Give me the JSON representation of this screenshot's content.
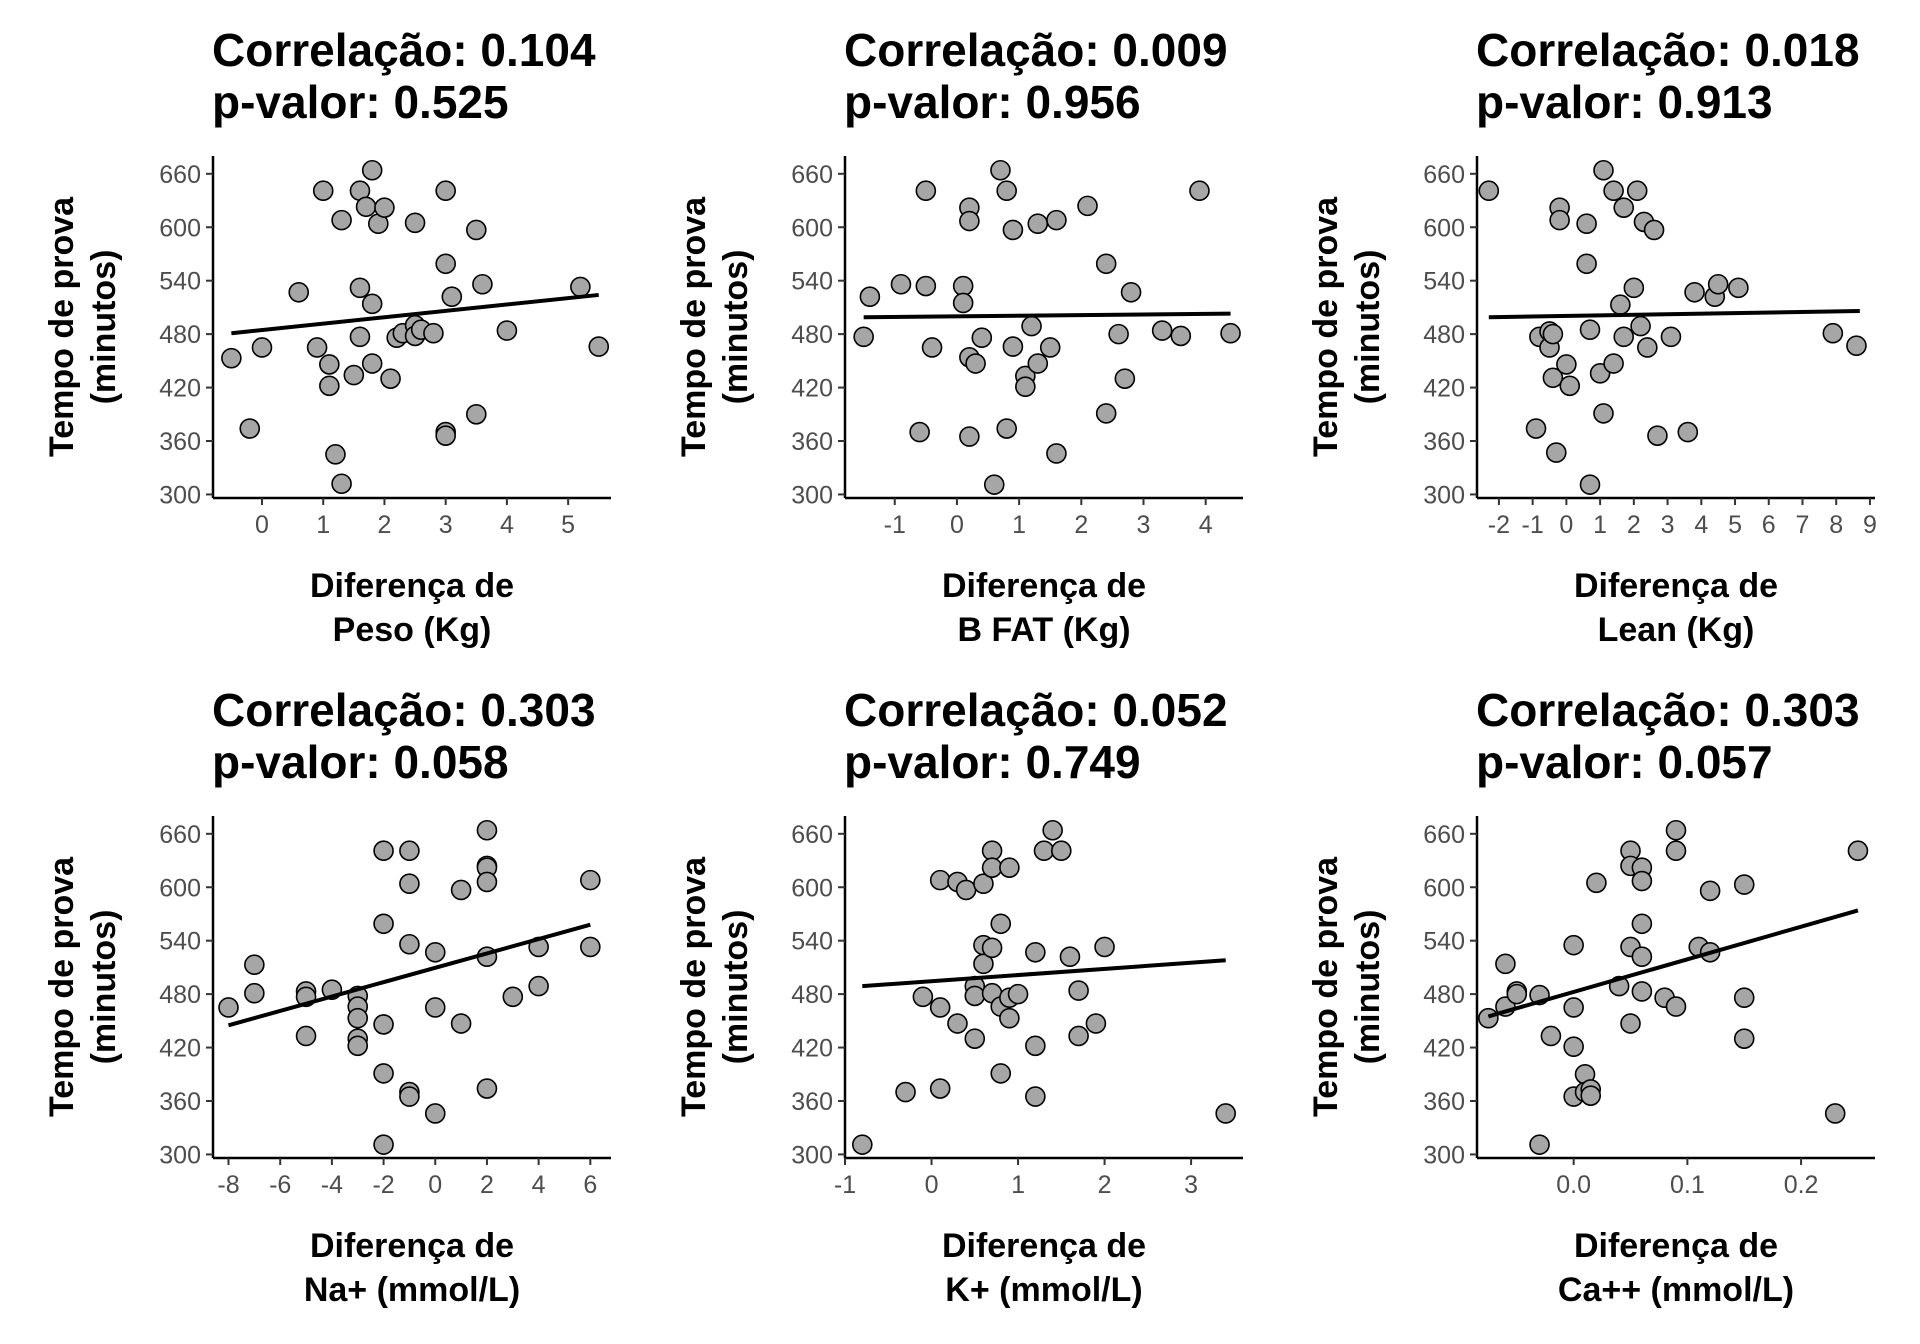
{
  "chart_data": [
    {
      "type": "scatter",
      "title": [
        "Correlação: 0.104",
        "p-valor: 0.525"
      ],
      "xlabel": [
        "Diferença de",
        "Peso (Kg)"
      ],
      "ylabel": [
        "Tempo de prova",
        "(minutos)"
      ],
      "xlim": [
        -0.8,
        5.7
      ],
      "ylim": [
        296,
        680
      ],
      "xticks": [
        0,
        1,
        2,
        3,
        4,
        5
      ],
      "xtick_labels": [
        "0",
        "1",
        "2",
        "3",
        "4",
        "5"
      ],
      "yticks": [
        300,
        360,
        420,
        480,
        540,
        600,
        660
      ],
      "ytick_labels": [
        "300",
        "360",
        "420",
        "480",
        "540",
        "600",
        "660"
      ],
      "trend": {
        "x": [
          -0.5,
          5.5
        ],
        "y": [
          481,
          524
        ]
      },
      "points": [
        [
          -0.5,
          453
        ],
        [
          -0.2,
          374
        ],
        [
          0,
          465
        ],
        [
          0.6,
          527
        ],
        [
          0.9,
          465
        ],
        [
          1,
          641
        ],
        [
          1.1,
          446
        ],
        [
          1.1,
          422
        ],
        [
          1.2,
          345
        ],
        [
          1.3,
          608
        ],
        [
          1.3,
          312
        ],
        [
          1.5,
          434
        ],
        [
          1.6,
          641
        ],
        [
          1.6,
          532
        ],
        [
          1.6,
          477
        ],
        [
          1.7,
          623
        ],
        [
          1.8,
          664
        ],
        [
          1.8,
          514
        ],
        [
          1.8,
          447
        ],
        [
          1.9,
          604
        ],
        [
          2,
          622
        ],
        [
          2.1,
          430
        ],
        [
          2.2,
          476
        ],
        [
          2.3,
          481
        ],
        [
          2.5,
          605
        ],
        [
          2.5,
          490
        ],
        [
          2.5,
          478
        ],
        [
          2.6,
          485
        ],
        [
          2.8,
          481
        ],
        [
          3,
          641
        ],
        [
          3,
          559
        ],
        [
          3,
          370
        ],
        [
          3,
          366
        ],
        [
          3.1,
          522
        ],
        [
          3.5,
          597
        ],
        [
          3.5,
          390
        ],
        [
          3.6,
          536
        ],
        [
          4,
          484
        ],
        [
          5.2,
          533
        ],
        [
          5.5,
          466
        ]
      ]
    },
    {
      "type": "scatter",
      "title": [
        "Correlação: 0.009",
        "p-valor: 0.956"
      ],
      "xlabel": [
        "Diferença de",
        "B FAT (Kg)"
      ],
      "ylabel": [
        "Tempo de prova",
        "(minutos)"
      ],
      "xlim": [
        -1.8,
        4.6
      ],
      "ylim": [
        296,
        680
      ],
      "xticks": [
        -1,
        0,
        1,
        2,
        3,
        4
      ],
      "xtick_labels": [
        "-1",
        "0",
        "1",
        "2",
        "3",
        "4"
      ],
      "yticks": [
        300,
        360,
        420,
        480,
        540,
        600,
        660
      ],
      "ytick_labels": [
        "300",
        "360",
        "420",
        "480",
        "540",
        "600",
        "660"
      ],
      "trend": {
        "x": [
          -1.5,
          4.4
        ],
        "y": [
          499,
          503
        ]
      },
      "points": [
        [
          -1.5,
          477
        ],
        [
          -1.4,
          522
        ],
        [
          -0.9,
          536
        ],
        [
          -0.6,
          370
        ],
        [
          -0.5,
          641
        ],
        [
          -0.5,
          534
        ],
        [
          -0.4,
          465
        ],
        [
          0.1,
          534
        ],
        [
          0.1,
          515
        ],
        [
          0.2,
          622
        ],
        [
          0.2,
          607
        ],
        [
          0.2,
          454
        ],
        [
          0.2,
          365
        ],
        [
          0.3,
          447
        ],
        [
          0.4,
          476
        ],
        [
          0.6,
          311
        ],
        [
          0.7,
          664
        ],
        [
          0.8,
          641
        ],
        [
          0.8,
          374
        ],
        [
          0.9,
          597
        ],
        [
          0.9,
          466
        ],
        [
          1.1,
          433
        ],
        [
          1.1,
          421
        ],
        [
          1.2,
          489
        ],
        [
          1.3,
          604
        ],
        [
          1.3,
          447
        ],
        [
          1.5,
          465
        ],
        [
          1.6,
          608
        ],
        [
          1.6,
          346
        ],
        [
          2.1,
          624
        ],
        [
          2.4,
          559
        ],
        [
          2.4,
          391
        ],
        [
          2.6,
          480
        ],
        [
          2.7,
          430
        ],
        [
          2.8,
          527
        ],
        [
          3.3,
          484
        ],
        [
          3.6,
          478
        ],
        [
          3.9,
          641
        ],
        [
          4.4,
          481
        ]
      ]
    },
    {
      "type": "scatter",
      "title": [
        "Correlação: 0.018",
        "p-valor: 0.913"
      ],
      "xlabel": [
        "Diferença de",
        "Lean (Kg)"
      ],
      "ylabel": [
        "Tempo de prova",
        "(minutos)"
      ],
      "xlim": [
        -2.65,
        9.15
      ],
      "ylim": [
        296,
        680
      ],
      "xticks": [
        -2,
        -1,
        0,
        1,
        2,
        3,
        4,
        5,
        6,
        7,
        8,
        9
      ],
      "xtick_labels": [
        "-2",
        "-1",
        "0",
        "1",
        "2",
        "3",
        "4",
        "5",
        "6",
        "7",
        "8",
        "9"
      ],
      "yticks": [
        300,
        360,
        420,
        480,
        540,
        600,
        660
      ],
      "ytick_labels": [
        "300",
        "360",
        "420",
        "480",
        "540",
        "600",
        "660"
      ],
      "trend": {
        "x": [
          -2.3,
          8.7
        ],
        "y": [
          499,
          506
        ]
      },
      "points": [
        [
          -2.3,
          641
        ],
        [
          -0.9,
          374
        ],
        [
          -0.8,
          477
        ],
        [
          -0.5,
          483
        ],
        [
          -0.5,
          465
        ],
        [
          -0.4,
          431
        ],
        [
          -0.4,
          480
        ],
        [
          -0.3,
          347
        ],
        [
          -0.2,
          622
        ],
        [
          -0.2,
          608
        ],
        [
          0,
          446
        ],
        [
          0.1,
          422
        ],
        [
          0.6,
          604
        ],
        [
          0.6,
          559
        ],
        [
          0.7,
          485
        ],
        [
          0.7,
          311
        ],
        [
          1,
          436
        ],
        [
          1.1,
          664
        ],
        [
          1.1,
          391
        ],
        [
          1.4,
          641
        ],
        [
          1.4,
          447
        ],
        [
          1.6,
          513
        ],
        [
          1.7,
          622
        ],
        [
          1.7,
          477
        ],
        [
          2,
          532
        ],
        [
          2.1,
          641
        ],
        [
          2.2,
          489
        ],
        [
          2.3,
          606
        ],
        [
          2.4,
          465
        ],
        [
          2.6,
          597
        ],
        [
          2.7,
          366
        ],
        [
          3.1,
          477
        ],
        [
          3.6,
          370
        ],
        [
          3.8,
          527
        ],
        [
          4.4,
          522
        ],
        [
          4.5,
          536
        ],
        [
          5.1,
          532
        ],
        [
          7.9,
          481
        ],
        [
          8.6,
          467
        ]
      ]
    },
    {
      "type": "scatter",
      "title": [
        "Correlação: 0.303",
        "p-valor: 0.058"
      ],
      "xlabel": [
        "Diferença de",
        "Na+ (mmol/L)"
      ],
      "ylabel": [
        "Tempo de prova",
        "(minutos)"
      ],
      "xlim": [
        -8.6,
        6.8
      ],
      "ylim": [
        296,
        680
      ],
      "xticks": [
        -8,
        -6,
        -4,
        -2,
        0,
        2,
        4,
        6
      ],
      "xtick_labels": [
        "-8",
        "-6",
        "-4",
        "-2",
        "0",
        "2",
        "4",
        "6"
      ],
      "yticks": [
        300,
        360,
        420,
        480,
        540,
        600,
        660
      ],
      "ytick_labels": [
        "300",
        "360",
        "420",
        "480",
        "540",
        "600",
        "660"
      ],
      "trend": {
        "x": [
          -8,
          6
        ],
        "y": [
          445,
          558
        ]
      },
      "points": [
        [
          -8,
          465
        ],
        [
          -7,
          513
        ],
        [
          -7,
          481
        ],
        [
          -5,
          483
        ],
        [
          -5,
          477
        ],
        [
          -5,
          433
        ],
        [
          -4,
          485
        ],
        [
          -3,
          478
        ],
        [
          -3,
          466
        ],
        [
          -3,
          453
        ],
        [
          -3,
          430
        ],
        [
          -3,
          422
        ],
        [
          -2,
          641
        ],
        [
          -2,
          559
        ],
        [
          -2,
          446
        ],
        [
          -2,
          391
        ],
        [
          -2,
          311
        ],
        [
          -1,
          641
        ],
        [
          -1,
          604
        ],
        [
          -1,
          536
        ],
        [
          -1,
          370
        ],
        [
          -1,
          365
        ],
        [
          0,
          527
        ],
        [
          0,
          465
        ],
        [
          0,
          346
        ],
        [
          1,
          597
        ],
        [
          1,
          447
        ],
        [
          2,
          664
        ],
        [
          2,
          624
        ],
        [
          2,
          622
        ],
        [
          2,
          606
        ],
        [
          2,
          522
        ],
        [
          2,
          374
        ],
        [
          3,
          477
        ],
        [
          4,
          533
        ],
        [
          4,
          489
        ],
        [
          6,
          608
        ],
        [
          6,
          533
        ]
      ]
    },
    {
      "type": "scatter",
      "title": [
        "Correlação: 0.052",
        "p-valor: 0.749"
      ],
      "xlabel": [
        "Diferença de",
        "K+ (mmol/L)"
      ],
      "ylabel": [
        "Tempo de prova",
        "(minutos)"
      ],
      "xlim": [
        -1,
        3.6
      ],
      "ylim": [
        296,
        680
      ],
      "xticks": [
        -1,
        0,
        1,
        2,
        3
      ],
      "xtick_labels": [
        "-1",
        "0",
        "1",
        "2",
        "3"
      ],
      "yticks": [
        300,
        360,
        420,
        480,
        540,
        600,
        660
      ],
      "ytick_labels": [
        "300",
        "360",
        "420",
        "480",
        "540",
        "600",
        "660"
      ],
      "trend": {
        "x": [
          -0.8,
          3.4
        ],
        "y": [
          489,
          518
        ]
      },
      "points": [
        [
          -0.8,
          311
        ],
        [
          -0.3,
          370
        ],
        [
          -0.1,
          477
        ],
        [
          0.1,
          608
        ],
        [
          0.1,
          465
        ],
        [
          0.1,
          374
        ],
        [
          0.3,
          606
        ],
        [
          0.3,
          447
        ],
        [
          0.4,
          597
        ],
        [
          0.5,
          489
        ],
        [
          0.5,
          478
        ],
        [
          0.5,
          430
        ],
        [
          0.6,
          604
        ],
        [
          0.6,
          535
        ],
        [
          0.6,
          514
        ],
        [
          0.7,
          641
        ],
        [
          0.7,
          622
        ],
        [
          0.7,
          532
        ],
        [
          0.7,
          481
        ],
        [
          0.8,
          559
        ],
        [
          0.8,
          466
        ],
        [
          0.8,
          391
        ],
        [
          0.9,
          622
        ],
        [
          0.9,
          476
        ],
        [
          0.9,
          453
        ],
        [
          1,
          480
        ],
        [
          1.2,
          527
        ],
        [
          1.2,
          422
        ],
        [
          1.2,
          365
        ],
        [
          1.3,
          641
        ],
        [
          1.4,
          664
        ],
        [
          1.5,
          641
        ],
        [
          1.6,
          522
        ],
        [
          1.7,
          484
        ],
        [
          1.7,
          433
        ],
        [
          1.9,
          447
        ],
        [
          2,
          533
        ],
        [
          3.4,
          346
        ]
      ]
    },
    {
      "type": "scatter",
      "title": [
        "Correlação: 0.303",
        "p-valor: 0.057"
      ],
      "xlabel": [
        "Diferença de",
        "Ca++ (mmol/L)"
      ],
      "ylabel": [
        "Tempo de prova",
        "(minutos)"
      ],
      "xlim": [
        -0.085,
        0.265
      ],
      "ylim": [
        296,
        680
      ],
      "xticks": [
        0,
        0.1,
        0.2
      ],
      "xtick_labels": [
        "0.0",
        "0.1",
        "0.2"
      ],
      "yticks": [
        300,
        360,
        420,
        480,
        540,
        600,
        660
      ],
      "ytick_labels": [
        "300",
        "360",
        "420",
        "480",
        "540",
        "600",
        "660"
      ],
      "trend": {
        "x": [
          -0.075,
          0.25
        ],
        "y": [
          455,
          574
        ]
      },
      "points": [
        [
          -0.075,
          453
        ],
        [
          -0.06,
          514
        ],
        [
          -0.06,
          466
        ],
        [
          -0.05,
          483
        ],
        [
          -0.05,
          480
        ],
        [
          -0.03,
          479
        ],
        [
          -0.03,
          311
        ],
        [
          -0.02,
          433
        ],
        [
          0,
          535
        ],
        [
          0,
          465
        ],
        [
          0,
          421
        ],
        [
          0,
          365
        ],
        [
          0.01,
          390
        ],
        [
          0.01,
          370
        ],
        [
          0.015,
          373
        ],
        [
          0.015,
          366
        ],
        [
          0.02,
          605
        ],
        [
          0.04,
          489
        ],
        [
          0.05,
          641
        ],
        [
          0.05,
          624
        ],
        [
          0.05,
          533
        ],
        [
          0.05,
          447
        ],
        [
          0.06,
          622
        ],
        [
          0.06,
          607
        ],
        [
          0.06,
          559
        ],
        [
          0.06,
          522
        ],
        [
          0.06,
          483
        ],
        [
          0.08,
          476
        ],
        [
          0.09,
          664
        ],
        [
          0.09,
          641
        ],
        [
          0.09,
          466
        ],
        [
          0.11,
          533
        ],
        [
          0.12,
          596
        ],
        [
          0.12,
          527
        ],
        [
          0.15,
          603
        ],
        [
          0.15,
          476
        ],
        [
          0.15,
          430
        ],
        [
          0.23,
          346
        ],
        [
          0.25,
          641
        ]
      ]
    }
  ]
}
